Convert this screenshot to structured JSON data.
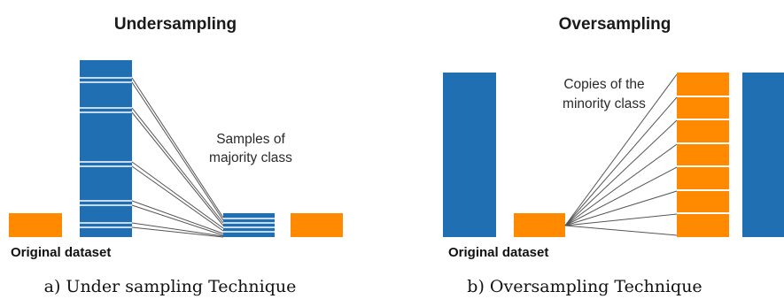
{
  "colors": {
    "majority": "#1f6fb2",
    "minority": "#ff8a00",
    "line": "#555555",
    "divider": "#ffffff"
  },
  "undersampling": {
    "title": "Undersampling",
    "annotation": [
      "Samples of",
      "majority class"
    ],
    "dataset_label": "Original dataset",
    "caption": "a) Under sampling Technique"
  },
  "oversampling": {
    "title": "Oversampling",
    "annotation": [
      "Copies of the",
      "minority class"
    ],
    "dataset_label": "Original dataset",
    "caption": "b) Oversampling Technique"
  }
}
